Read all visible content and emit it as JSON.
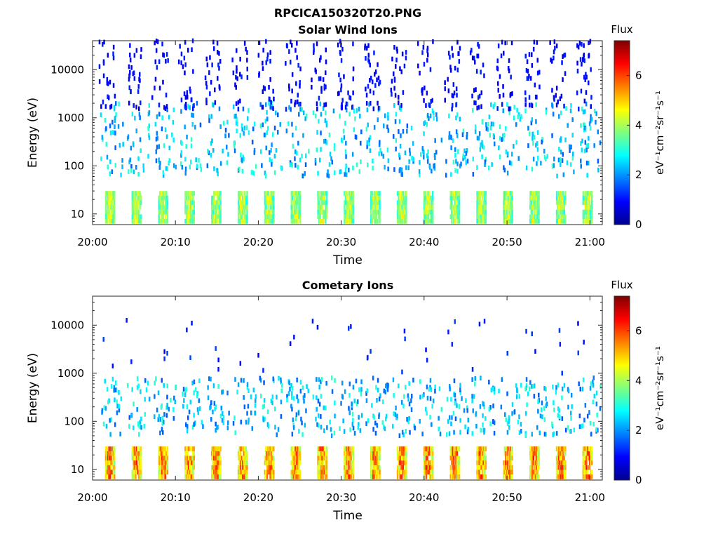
{
  "title": "RPCICA150320T20.PNG",
  "colormap": "jet",
  "colors": {
    "background": "#ffffff",
    "axes": "#262626"
  },
  "chart_data": [
    {
      "type": "heatmap",
      "title": "Solar Wind Ions",
      "xlabel": "Time",
      "ylabel": "Energy (eV)",
      "x_ticks": [
        "20:00",
        "20:10",
        "20:20",
        "20:30",
        "20:40",
        "20:50",
        "21:00"
      ],
      "y_ticks": [
        "10",
        "100",
        "1000",
        "10000"
      ],
      "y_scale": "log",
      "ylim": [
        6,
        40000
      ],
      "xlim_minutes": [
        0,
        61.5
      ],
      "colorbar": {
        "label": "Flux",
        "unit": "eV⁻¹cm⁻²sr⁻¹s⁻¹",
        "range": [
          0,
          7.4
        ],
        "ticks": [
          "0",
          "2",
          "4",
          "6"
        ]
      },
      "scan_period_min": 3.2,
      "low_energy_band": {
        "energy_range_eV": [
          7,
          27
        ],
        "flux_level": 4.8
      },
      "scatter_band": {
        "energy_range_eV": [
          60,
          2000
        ],
        "flux_level": 2.8
      },
      "high_energy_speckle": {
        "energy_range_eV": [
          1500,
          40000
        ],
        "flux_level": 1.0
      }
    },
    {
      "type": "heatmap",
      "title": "Cometary Ions",
      "xlabel": "Time",
      "ylabel": "Energy (eV)",
      "x_ticks": [
        "20:00",
        "20:10",
        "20:20",
        "20:30",
        "20:40",
        "20:50",
        "21:00"
      ],
      "y_ticks": [
        "10",
        "100",
        "1000",
        "10000"
      ],
      "y_scale": "log",
      "ylim": [
        6,
        40000
      ],
      "xlim_minutes": [
        0,
        61.5
      ],
      "colorbar": {
        "label": "Flux",
        "unit": "eV⁻¹cm⁻²sr⁻¹s⁻¹",
        "range": [
          0,
          7.4
        ],
        "ticks": [
          "0",
          "2",
          "4",
          "6"
        ]
      },
      "scan_period_min": 3.2,
      "low_energy_band": {
        "energy_range_eV": [
          7,
          27
        ],
        "flux_level": 6.4
      },
      "scatter_band": {
        "energy_range_eV": [
          50,
          800
        ],
        "flux_level": 2.8
      },
      "high_energy_speckle": {
        "energy_range_eV": [
          1000,
          13000
        ],
        "flux_level": 1.2
      }
    }
  ]
}
